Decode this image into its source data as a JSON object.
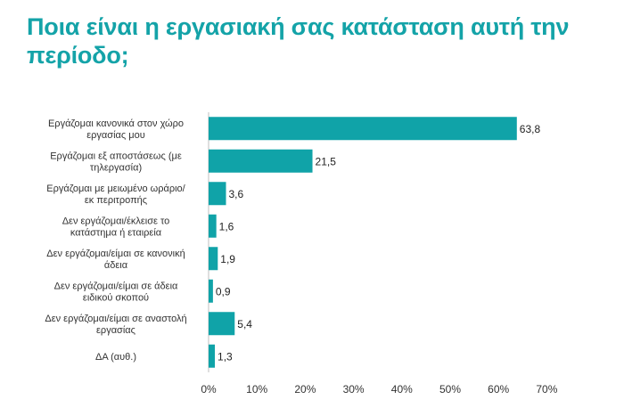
{
  "chart_data": {
    "type": "bar",
    "orientation": "horizontal",
    "title": "Ποια είναι η εργασιακή σας κατάσταση αυτή την περίοδο;",
    "categories": [
      [
        "Εργάζομαι κανονικά στον χώρο",
        "εργασίας μου"
      ],
      [
        "Εργάζομαι εξ αποστάσεως (με",
        "τηλεργασία)"
      ],
      [
        "Εργάζομαι με μειωμένο ωράριο/",
        "εκ περιτροπής"
      ],
      [
        "Δεν εργάζομαι/έκλεισε το",
        "κατάστημα ή εταιρεία"
      ],
      [
        "Δεν εργάζομαι/είμαι σε κανονική",
        "άδεια"
      ],
      [
        "Δεν εργάζομαι/είμαι σε άδεια",
        "ειδικού σκοπού"
      ],
      [
        "Δεν εργάζομαι/είμαι σε αναστολή",
        "εργασίας"
      ],
      [
        "ΔΑ (αυθ.)"
      ]
    ],
    "values": [
      63.8,
      21.5,
      3.6,
      1.6,
      1.9,
      0.9,
      5.4,
      1.3
    ],
    "value_labels": [
      "63,8",
      "21,5",
      "3,6",
      "1,6",
      "1,9",
      "0,9",
      "5,4",
      "1,3"
    ],
    "xlim": [
      0,
      70
    ],
    "xticks": [
      0,
      10,
      20,
      30,
      40,
      50,
      60,
      70
    ],
    "xtick_labels": [
      "0%",
      "10%",
      "20%",
      "30%",
      "40%",
      "50%",
      "60%",
      "70%"
    ],
    "grid": false,
    "legend": "none",
    "colors": {
      "bar": "#10a3a8",
      "title": "#14a3a8",
      "axis": "#bfbfbf"
    }
  }
}
